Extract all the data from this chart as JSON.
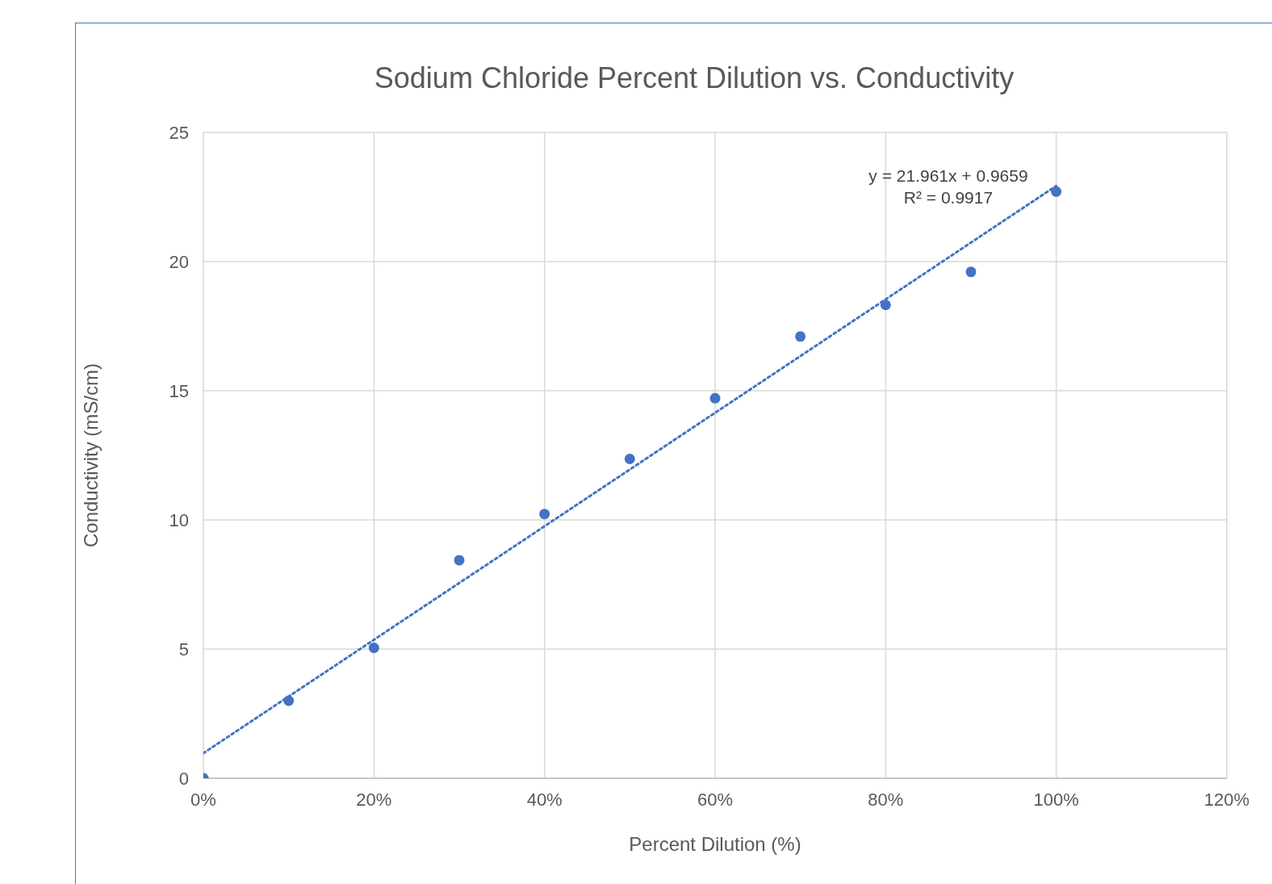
{
  "chart_data": {
    "type": "scatter",
    "title": "Sodium Chloride Percent Dilution vs. Conductivity",
    "xlabel": "Percent Dilution (%)",
    "ylabel": "Conductivity (mS/cm)",
    "annotations": [
      "y = 21.961x + 0.9659",
      "R² = 0.9917"
    ],
    "x": [
      0,
      0.1,
      0.2,
      0.3,
      0.4,
      0.5,
      0.6,
      0.7,
      0.8,
      0.9,
      1.0
    ],
    "series": [
      {
        "color": "#4472c4",
        "marker": "circle",
        "values": [
          0,
          3.0,
          5.05,
          8.44,
          10.23,
          12.36,
          14.71,
          17.1,
          18.32,
          19.6,
          22.71
        ]
      },
      {
        "type": "line",
        "color": "#4472c4",
        "line_style": "dotted",
        "marker": "none",
        "x": [
          0,
          1.0
        ],
        "values": [
          0.97,
          22.93
        ]
      }
    ],
    "xlim": [
      0,
      1.2
    ],
    "xticks": [
      {
        "value": 0,
        "label": "0%"
      },
      {
        "value": 0.2,
        "label": "20%"
      },
      {
        "value": 0.4,
        "label": "40%"
      },
      {
        "value": 0.6,
        "label": "60%"
      },
      {
        "value": 0.8,
        "label": "80%"
      },
      {
        "value": 1.0,
        "label": "100%"
      },
      {
        "value": 1.2,
        "label": "120%"
      }
    ],
    "ylim": [
      0,
      25
    ],
    "yticks": [
      0,
      5,
      10,
      15,
      20,
      25
    ],
    "grid": true
  }
}
